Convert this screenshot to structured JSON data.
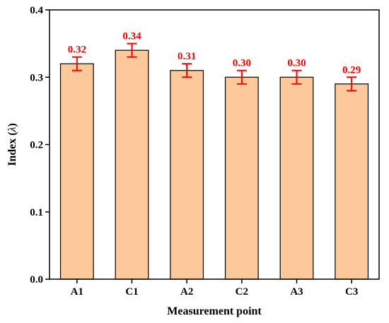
{
  "chart_data": {
    "type": "bar",
    "xlabel": "Measurement point",
    "ylabel_prefix": "Index (",
    "ylabel_symbol": "λ",
    "ylabel_suffix": ")",
    "categories": [
      "A1",
      "C1",
      "A2",
      "C2",
      "A3",
      "C3"
    ],
    "values": [
      0.32,
      0.34,
      0.31,
      0.3,
      0.3,
      0.29
    ],
    "value_labels": [
      "0.32",
      "0.34",
      "0.31",
      "0.30",
      "0.30",
      "0.29"
    ],
    "error": [
      0.01,
      0.01,
      0.01,
      0.01,
      0.01,
      0.01
    ],
    "ylim": [
      0.0,
      0.4
    ],
    "yticks": [
      0.0,
      0.1,
      0.2,
      0.3,
      0.4
    ],
    "ytick_labels": [
      "0.0",
      "0.1",
      "0.2",
      "0.3",
      "0.4"
    ],
    "grid": false,
    "legend": "none",
    "colors": {
      "bar_fill": "#fdc99b",
      "bar_stroke": "#000000",
      "error_bar": "#ff0000",
      "data_label": "#ff0000",
      "axis": "#000000"
    }
  }
}
